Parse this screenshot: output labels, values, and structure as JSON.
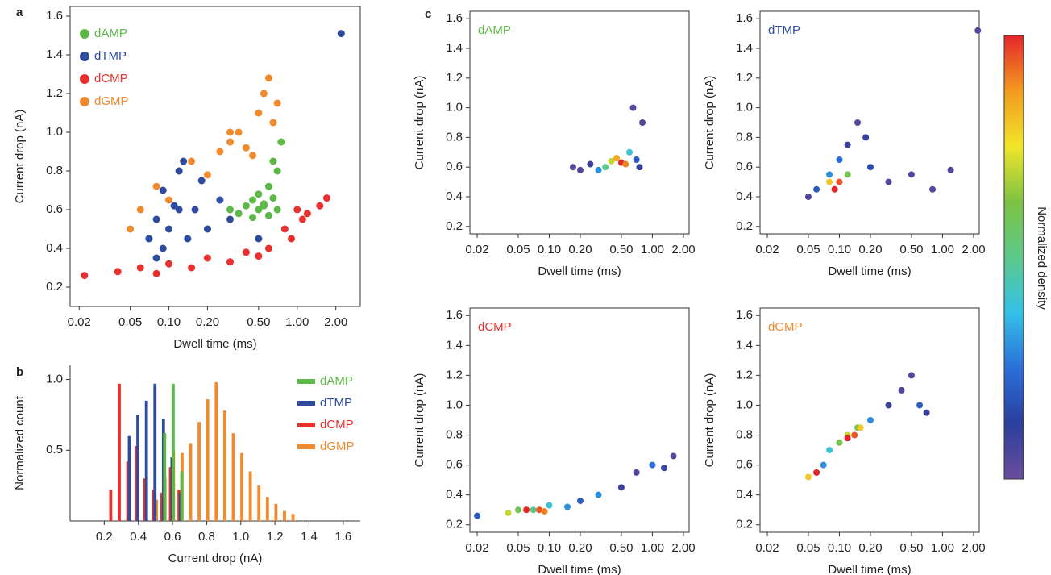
{
  "colorbar": {
    "label": "Normalized density",
    "colors": [
      "#6a4c9c",
      "#2b3f9e",
      "#2a6fd8",
      "#34c0e8",
      "#5cc98a",
      "#7cc242",
      "#f2e52a",
      "#f39a1f",
      "#e4262a"
    ]
  },
  "chart_data": [
    {
      "type": "scatter",
      "panel_label": "a",
      "xlabel": "Dwell time (ms)",
      "ylabel": "Current drop (nA)",
      "xscale": "log",
      "xlim": [
        0.017,
        3.1
      ],
      "ylim": [
        0.1,
        1.65
      ],
      "xticks": [
        0.02,
        0.05,
        {
          "value": 0.1,
          "label": "0.10"
        },
        {
          "value": 0.2,
          "label": "0.20"
        },
        {
          "value": 0.5,
          "label": "0.50"
        },
        {
          "value": 1,
          "label": "1.00"
        },
        {
          "value": 2,
          "label": "2.00"
        }
      ],
      "yticks": [
        0.2,
        0.4,
        0.6,
        0.8,
        {
          "value": 1,
          "label": "1.0"
        },
        1.2,
        1.4,
        1.6
      ],
      "legend": "upper left",
      "series": [
        {
          "name": "dAMP",
          "color": "#5cb947",
          "x": [
            0.3,
            0.35,
            0.4,
            0.45,
            0.5,
            0.55,
            0.6,
            0.65,
            0.7,
            0.5,
            0.45,
            0.6,
            0.7,
            0.75,
            0.65,
            0.55
          ],
          "values": [
            0.6,
            0.58,
            0.62,
            0.65,
            0.6,
            0.63,
            0.57,
            0.66,
            0.6,
            0.68,
            0.56,
            0.72,
            0.8,
            0.95,
            0.85,
            0.62
          ]
        },
        {
          "name": "dTMP",
          "color": "#2f4b9e",
          "x": [
            0.07,
            0.08,
            0.09,
            0.1,
            0.11,
            0.12,
            0.14,
            0.16,
            0.18,
            0.09,
            0.13,
            0.2,
            0.3,
            0.5,
            0.08,
            0.12,
            0.25,
            2.2
          ],
          "values": [
            0.45,
            0.55,
            0.7,
            0.5,
            0.62,
            0.8,
            0.45,
            0.6,
            0.75,
            0.4,
            0.85,
            0.5,
            0.55,
            0.45,
            0.35,
            0.6,
            0.65,
            1.51
          ]
        },
        {
          "name": "dCMP",
          "color": "#e8312e",
          "x": [
            0.022,
            0.04,
            0.06,
            0.08,
            0.1,
            0.15,
            0.2,
            0.3,
            0.4,
            0.6,
            0.8,
            1,
            1.2,
            1.5,
            1.7,
            0.9,
            1.1,
            0.5
          ],
          "values": [
            0.26,
            0.28,
            0.3,
            0.27,
            0.32,
            0.3,
            0.35,
            0.33,
            0.38,
            0.4,
            0.5,
            0.6,
            0.58,
            0.62,
            0.66,
            0.45,
            0.55,
            0.36
          ]
        },
        {
          "name": "dGMP",
          "color": "#f08a2c",
          "x": [
            0.05,
            0.06,
            0.08,
            0.1,
            0.12,
            0.15,
            0.2,
            0.25,
            0.3,
            0.35,
            0.4,
            0.5,
            0.55,
            0.6,
            0.65,
            0.7,
            0.45,
            0.3
          ],
          "values": [
            0.5,
            0.6,
            0.72,
            0.65,
            0.8,
            0.85,
            0.78,
            0.9,
            0.95,
            1,
            0.92,
            1.1,
            1.2,
            1.28,
            1.05,
            1.15,
            0.88,
            1
          ]
        }
      ]
    },
    {
      "type": "bar",
      "panel_label": "b",
      "xlabel": "Current drop (nA)",
      "ylabel": "Normalized count",
      "xlim": [
        0,
        1.7
      ],
      "ylim": [
        0,
        1.1
      ],
      "xticks": [
        0.2,
        0.4,
        0.6,
        0.8,
        {
          "value": 1,
          "label": "1.0"
        },
        1.2,
        1.4,
        1.6
      ],
      "yticks": [
        0.5,
        {
          "value": 1,
          "label": "1.0"
        }
      ],
      "legend": "upper right",
      "series": [
        {
          "name": "dAMP",
          "color": "#5cb947",
          "x": [
            0.55,
            0.6,
            0.65
          ],
          "values": [
            0.62,
            0.97,
            0.35
          ]
        },
        {
          "name": "dTMP",
          "color": "#2f4b9e",
          "x": [
            0.35,
            0.4,
            0.45,
            0.5,
            0.55,
            0.6,
            0.65
          ],
          "values": [
            0.6,
            0.75,
            0.85,
            0.97,
            0.72,
            0.45,
            0.2
          ]
        },
        {
          "name": "dCMP",
          "color": "#e8312e",
          "x": [
            0.25,
            0.3,
            0.35,
            0.4,
            0.45,
            0.5,
            0.55,
            0.6,
            0.65
          ],
          "values": [
            0.22,
            0.97,
            0.42,
            0.53,
            0.3,
            0.22,
            0.2,
            0.38,
            0.22
          ]
        },
        {
          "name": "dGMP",
          "color": "#f08a2c",
          "x": [
            0.5,
            0.55,
            0.6,
            0.65,
            0.7,
            0.75,
            0.8,
            0.85,
            0.9,
            0.95,
            1,
            1.05,
            1.1,
            1.15,
            1.2,
            1.25,
            1.3
          ],
          "values": [
            0.15,
            0.3,
            0.5,
            0.48,
            0.55,
            0.7,
            0.86,
            0.98,
            0.78,
            0.62,
            0.48,
            0.35,
            0.25,
            0.17,
            0.12,
            0.07,
            0.05
          ]
        }
      ]
    },
    {
      "type": "density",
      "panel_label": "c",
      "xlabel": "Dwell time (ms)",
      "ylabel": "Current drop (nA)",
      "xscale": "log",
      "xlim": [
        0.017,
        2.27
      ],
      "ylim": [
        0.15,
        1.65
      ],
      "xticks": [
        0.02,
        0.05,
        {
          "value": 0.1,
          "label": "0.10"
        },
        {
          "value": 0.2,
          "label": "0.20"
        },
        {
          "value": 0.5,
          "label": "0.50"
        },
        {
          "value": 1,
          "label": "1.00"
        },
        {
          "value": 2,
          "label": "2.00"
        }
      ],
      "yticks": [
        0.2,
        0.4,
        0.6,
        0.8,
        {
          "value": 1,
          "label": "1.0"
        },
        1.2,
        1.4,
        1.6
      ],
      "series": [
        {
          "name": "dAMP",
          "color": "#5cb947",
          "x": [
            0.17,
            0.2,
            0.25,
            0.3,
            0.35,
            0.4,
            0.45,
            0.5,
            0.55,
            0.6,
            0.7,
            0.8,
            0.65,
            0.75
          ],
          "values": [
            0.6,
            0.58,
            0.62,
            0.58,
            0.6,
            0.64,
            0.66,
            0.63,
            0.62,
            0.7,
            0.65,
            0.9,
            1,
            0.6
          ],
          "density": [
            0.05,
            0.05,
            0.1,
            0.3,
            0.5,
            0.7,
            0.85,
            1,
            0.9,
            0.4,
            0.2,
            0.05,
            0.05,
            0.1
          ]
        }
      ]
    },
    {
      "type": "density",
      "xlabel": "Dwell time (ms)",
      "ylabel": "Current drop (nA)",
      "xscale": "log",
      "xlim": [
        0.017,
        2.27
      ],
      "ylim": [
        0.15,
        1.65
      ],
      "xticks": [
        0.02,
        0.05,
        {
          "value": 0.1,
          "label": "0.10"
        },
        {
          "value": 0.2,
          "label": "0.20"
        },
        {
          "value": 0.5,
          "label": "0.50"
        },
        {
          "value": 1,
          "label": "1.00"
        },
        {
          "value": 2,
          "label": "2.00"
        }
      ],
      "yticks": [
        0.2,
        0.4,
        0.6,
        0.8,
        {
          "value": 1,
          "label": "1.0"
        },
        1.2,
        1.4,
        1.6
      ],
      "series": [
        {
          "name": "dTMP",
          "color": "#2f4b9e",
          "x": [
            0.05,
            0.06,
            0.08,
            0.1,
            0.12,
            0.15,
            0.18,
            0.2,
            0.3,
            0.5,
            0.8,
            1.2,
            0.08,
            0.09,
            0.1,
            0.12,
            2.2
          ],
          "values": [
            0.4,
            0.45,
            0.55,
            0.65,
            0.75,
            0.9,
            0.8,
            0.6,
            0.5,
            0.55,
            0.45,
            0.58,
            0.5,
            0.45,
            0.5,
            0.55,
            1.52
          ],
          "density": [
            0.05,
            0.2,
            0.3,
            0.25,
            0.1,
            0.05,
            0.1,
            0.15,
            0.05,
            0.05,
            0.05,
            0.05,
            0.8,
            1,
            0.95,
            0.6,
            0.05
          ]
        }
      ]
    },
    {
      "type": "density",
      "xlabel": "Dwell time (ms)",
      "ylabel": "Current drop (nA)",
      "xscale": "log",
      "xlim": [
        0.017,
        2.27
      ],
      "ylim": [
        0.15,
        1.65
      ],
      "xticks": [
        0.02,
        0.05,
        {
          "value": 0.1,
          "label": "0.10"
        },
        {
          "value": 0.2,
          "label": "0.20"
        },
        {
          "value": 0.5,
          "label": "0.50"
        },
        {
          "value": 1,
          "label": "1.00"
        },
        {
          "value": 2,
          "label": "2.00"
        }
      ],
      "yticks": [
        0.2,
        0.4,
        0.6,
        0.8,
        {
          "value": 1,
          "label": "1.0"
        },
        1.2,
        1.4,
        1.6
      ],
      "series": [
        {
          "name": "dCMP",
          "color": "#e8312e",
          "x": [
            0.02,
            0.04,
            0.05,
            0.07,
            0.1,
            0.15,
            0.2,
            0.3,
            0.5,
            0.7,
            1,
            1.3,
            1.6,
            0.06,
            0.08,
            0.09
          ],
          "values": [
            0.26,
            0.28,
            0.3,
            0.3,
            0.33,
            0.32,
            0.36,
            0.4,
            0.45,
            0.55,
            0.6,
            0.58,
            0.66,
            0.3,
            0.3,
            0.29
          ],
          "density": [
            0.2,
            0.7,
            0.6,
            0.5,
            0.4,
            0.3,
            0.2,
            0.3,
            0.1,
            0.05,
            0.25,
            0.1,
            0.05,
            1,
            0.95,
            0.9
          ]
        }
      ]
    },
    {
      "type": "density",
      "xlabel": "Dwell time (ms)",
      "ylabel": "Current drop (nA)",
      "xscale": "log",
      "xlim": [
        0.017,
        2.27
      ],
      "ylim": [
        0.15,
        1.65
      ],
      "xticks": [
        0.02,
        0.05,
        {
          "value": 0.1,
          "label": "0.10"
        },
        {
          "value": 0.2,
          "label": "0.20"
        },
        {
          "value": 0.5,
          "label": "0.50"
        },
        {
          "value": 1,
          "label": "1.00"
        },
        {
          "value": 2,
          "label": "2.00"
        }
      ],
      "yticks": [
        0.2,
        0.4,
        0.6,
        0.8,
        {
          "value": 1,
          "label": "1.0"
        },
        1.2,
        1.4,
        1.6
      ],
      "series": [
        {
          "name": "dGMP",
          "color": "#f08a2c",
          "x": [
            0.05,
            0.06,
            0.07,
            0.08,
            0.1,
            0.12,
            0.15,
            0.2,
            0.3,
            0.4,
            0.5,
            0.6,
            0.7,
            0.12,
            0.14,
            0.16
          ],
          "values": [
            0.52,
            0.55,
            0.6,
            0.7,
            0.75,
            0.8,
            0.85,
            0.9,
            1,
            1.1,
            1.2,
            1,
            0.95,
            0.78,
            0.8,
            0.85
          ],
          "density": [
            0.8,
            1,
            0.3,
            0.4,
            0.6,
            0.7,
            0.6,
            0.3,
            0.1,
            0.05,
            0.05,
            0.2,
            0.1,
            1,
            0.95,
            0.8
          ]
        }
      ]
    }
  ]
}
